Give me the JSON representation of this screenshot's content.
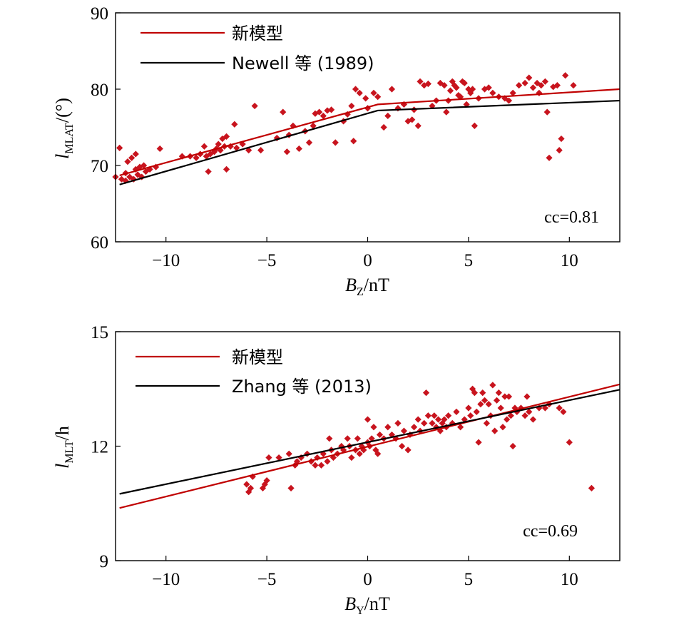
{
  "chart_data": [
    {
      "type": "scatter",
      "xlabel": "B",
      "xlabel_sub": "Z",
      "xlabel_unit": "/nT",
      "ylabel": "l",
      "ylabel_sub": "MLAT",
      "ylabel_unit": "/(°)",
      "xlim": [
        -12.5,
        12.5
      ],
      "ylim": [
        60,
        90
      ],
      "xticks": [
        -10,
        -5,
        0,
        5,
        10
      ],
      "xtick_labels": [
        "−10",
        "−5",
        "0",
        "5",
        "10"
      ],
      "yticks": [
        60,
        70,
        80,
        90
      ],
      "ytick_labels": [
        "60",
        "70",
        "80",
        "90"
      ],
      "annotation": "cc=0.81",
      "legend_position": "top-left",
      "series": [
        {
          "name": "新模型",
          "kind": "line",
          "color": "#c00000",
          "x": [
            -12.3,
            0.5,
            12.5
          ],
          "y": [
            68.7,
            78.0,
            80.0
          ]
        },
        {
          "name": "Newell 等 (1989)",
          "kind": "line",
          "color": "#000000",
          "x": [
            -12.3,
            0.5,
            12.5
          ],
          "y": [
            67.5,
            77.2,
            78.5
          ]
        },
        {
          "name": "",
          "kind": "scatter",
          "color": "#c8141e",
          "points": [
            [
              -12.5,
              68.5
            ],
            [
              -12.3,
              72.3
            ],
            [
              -12.2,
              68.2
            ],
            [
              -12.0,
              68.0
            ],
            [
              -12.0,
              69.0
            ],
            [
              -11.9,
              70.5
            ],
            [
              -11.8,
              68.5
            ],
            [
              -11.7,
              71.0
            ],
            [
              -11.6,
              68.2
            ],
            [
              -11.5,
              71.5
            ],
            [
              -11.5,
              69.5
            ],
            [
              -11.4,
              68.8
            ],
            [
              -11.3,
              69.8
            ],
            [
              -11.2,
              68.5
            ],
            [
              -11.1,
              70.0
            ],
            [
              -11.0,
              69.2
            ],
            [
              -10.8,
              69.5
            ],
            [
              -10.5,
              69.8
            ],
            [
              -10.3,
              72.2
            ],
            [
              -9.2,
              71.2
            ],
            [
              -8.8,
              71.2
            ],
            [
              -8.5,
              71.0
            ],
            [
              -8.3,
              71.5
            ],
            [
              -8.1,
              72.5
            ],
            [
              -8.0,
              71.2
            ],
            [
              -7.9,
              69.2
            ],
            [
              -7.8,
              71.5
            ],
            [
              -7.6,
              71.8
            ],
            [
              -7.5,
              72.2
            ],
            [
              -7.4,
              72.8
            ],
            [
              -7.3,
              72.0
            ],
            [
              -7.2,
              73.5
            ],
            [
              -7.1,
              72.5
            ],
            [
              -7.0,
              73.8
            ],
            [
              -7.0,
              69.5
            ],
            [
              -6.8,
              72.5
            ],
            [
              -6.6,
              75.4
            ],
            [
              -6.5,
              72.3
            ],
            [
              -6.2,
              72.8
            ],
            [
              -5.9,
              72.0
            ],
            [
              -5.6,
              77.8
            ],
            [
              -5.3,
              72.0
            ],
            [
              -4.5,
              73.6
            ],
            [
              -4.2,
              77.0
            ],
            [
              -4.0,
              71.8
            ],
            [
              -3.9,
              74.0
            ],
            [
              -3.7,
              75.2
            ],
            [
              -3.4,
              72.2
            ],
            [
              -3.1,
              74.5
            ],
            [
              -2.9,
              73.0
            ],
            [
              -2.7,
              75.2
            ],
            [
              -2.6,
              76.8
            ],
            [
              -2.4,
              77.0
            ],
            [
              -2.2,
              76.5
            ],
            [
              -2.0,
              77.2
            ],
            [
              -1.8,
              77.3
            ],
            [
              -1.6,
              73.0
            ],
            [
              -1.2,
              75.8
            ],
            [
              -1.0,
              76.7
            ],
            [
              -0.8,
              77.8
            ],
            [
              -0.7,
              73.2
            ],
            [
              -0.6,
              80.0
            ],
            [
              -0.4,
              79.5
            ],
            [
              -0.1,
              78.8
            ],
            [
              0.0,
              77.5
            ],
            [
              0.3,
              79.5
            ],
            [
              0.5,
              79.0
            ],
            [
              0.8,
              75.0
            ],
            [
              1.0,
              76.5
            ],
            [
              1.2,
              80.0
            ],
            [
              1.5,
              77.5
            ],
            [
              1.8,
              78.0
            ],
            [
              2.0,
              75.8
            ],
            [
              2.2,
              76.0
            ],
            [
              2.3,
              77.3
            ],
            [
              2.5,
              75.2
            ],
            [
              2.6,
              81.0
            ],
            [
              2.8,
              80.5
            ],
            [
              3.0,
              80.7
            ],
            [
              3.2,
              77.8
            ],
            [
              3.4,
              78.5
            ],
            [
              3.6,
              80.8
            ],
            [
              3.8,
              80.5
            ],
            [
              3.9,
              77.0
            ],
            [
              4.0,
              78.5
            ],
            [
              4.1,
              79.8
            ],
            [
              4.2,
              81.0
            ],
            [
              4.3,
              80.5
            ],
            [
              4.4,
              80.2
            ],
            [
              4.5,
              79.2
            ],
            [
              4.6,
              79.0
            ],
            [
              4.7,
              81.0
            ],
            [
              4.8,
              80.8
            ],
            [
              4.9,
              78.0
            ],
            [
              5.0,
              80.0
            ],
            [
              5.1,
              79.5
            ],
            [
              5.2,
              80.0
            ],
            [
              5.3,
              75.2
            ],
            [
              5.5,
              78.8
            ],
            [
              5.8,
              80.0
            ],
            [
              6.0,
              80.2
            ],
            [
              6.2,
              79.5
            ],
            [
              6.5,
              79.0
            ],
            [
              6.8,
              78.8
            ],
            [
              7.0,
              78.5
            ],
            [
              7.2,
              79.5
            ],
            [
              7.5,
              80.5
            ],
            [
              7.8,
              80.8
            ],
            [
              8.0,
              81.5
            ],
            [
              8.2,
              80.2
            ],
            [
              8.4,
              80.8
            ],
            [
              8.5,
              79.5
            ],
            [
              8.6,
              80.5
            ],
            [
              8.8,
              81.0
            ],
            [
              8.9,
              77.0
            ],
            [
              9.0,
              71.0
            ],
            [
              9.2,
              80.3
            ],
            [
              9.4,
              80.5
            ],
            [
              9.5,
              72.0
            ],
            [
              9.6,
              73.5
            ],
            [
              9.8,
              81.8
            ],
            [
              10.2,
              80.5
            ]
          ]
        }
      ]
    },
    {
      "type": "scatter",
      "xlabel": "B",
      "xlabel_sub": "Y",
      "xlabel_unit": "/nT",
      "ylabel": "l",
      "ylabel_sub": "MLT",
      "ylabel_unit": "/h",
      "xlim": [
        -12.5,
        12.5
      ],
      "ylim": [
        9,
        15
      ],
      "xticks": [
        -10,
        -5,
        0,
        5,
        10
      ],
      "xtick_labels": [
        "−10",
        "−5",
        "0",
        "5",
        "10"
      ],
      "yticks": [
        9,
        12,
        15
      ],
      "ytick_labels": [
        "9",
        "12",
        "15"
      ],
      "annotation": "cc=0.69",
      "legend_position": "top-left",
      "series": [
        {
          "name": "新模型",
          "kind": "line",
          "color": "#c00000",
          "x": [
            -12.3,
            12.5
          ],
          "y": [
            10.38,
            13.62
          ]
        },
        {
          "name": "Zhang 等 (2013)",
          "kind": "line",
          "color": "#000000",
          "x": [
            -12.3,
            12.5
          ],
          "y": [
            10.75,
            13.48
          ]
        },
        {
          "name": "",
          "kind": "scatter",
          "color": "#c8141e",
          "points": [
            [
              -6.0,
              11.0
            ],
            [
              -5.9,
              10.8
            ],
            [
              -5.8,
              10.9
            ],
            [
              -5.7,
              11.2
            ],
            [
              -5.2,
              10.9
            ],
            [
              -5.1,
              11.0
            ],
            [
              -5.0,
              11.1
            ],
            [
              -4.9,
              11.7
            ],
            [
              -4.4,
              11.7
            ],
            [
              -3.9,
              11.8
            ],
            [
              -3.8,
              10.9
            ],
            [
              -3.6,
              11.5
            ],
            [
              -3.5,
              11.6
            ],
            [
              -3.3,
              11.7
            ],
            [
              -3.0,
              11.8
            ],
            [
              -2.8,
              11.6
            ],
            [
              -2.6,
              11.5
            ],
            [
              -2.5,
              11.7
            ],
            [
              -2.3,
              11.5
            ],
            [
              -2.2,
              11.8
            ],
            [
              -2.0,
              11.6
            ],
            [
              -1.9,
              12.2
            ],
            [
              -1.8,
              11.9
            ],
            [
              -1.7,
              11.7
            ],
            [
              -1.5,
              11.8
            ],
            [
              -1.3,
              12.0
            ],
            [
              -1.2,
              11.9
            ],
            [
              -1.0,
              12.2
            ],
            [
              -0.9,
              12.0
            ],
            [
              -0.8,
              11.7
            ],
            [
              -0.6,
              11.9
            ],
            [
              -0.5,
              12.2
            ],
            [
              -0.4,
              11.8
            ],
            [
              -0.3,
              12.0
            ],
            [
              -0.2,
              11.9
            ],
            [
              0.0,
              12.1
            ],
            [
              0.0,
              12.7
            ],
            [
              0.1,
              12.0
            ],
            [
              0.2,
              12.2
            ],
            [
              0.3,
              12.5
            ],
            [
              0.4,
              11.9
            ],
            [
              0.5,
              11.8
            ],
            [
              0.6,
              12.3
            ],
            [
              0.8,
              12.2
            ],
            [
              1.0,
              12.5
            ],
            [
              1.2,
              12.3
            ],
            [
              1.4,
              12.2
            ],
            [
              1.5,
              12.6
            ],
            [
              1.7,
              12.0
            ],
            [
              1.8,
              12.4
            ],
            [
              2.0,
              11.9
            ],
            [
              2.1,
              12.3
            ],
            [
              2.3,
              12.5
            ],
            [
              2.5,
              12.7
            ],
            [
              2.6,
              12.4
            ],
            [
              2.8,
              12.6
            ],
            [
              2.9,
              13.4
            ],
            [
              3.0,
              12.8
            ],
            [
              3.2,
              12.6
            ],
            [
              3.3,
              12.8
            ],
            [
              3.4,
              12.5
            ],
            [
              3.5,
              12.7
            ],
            [
              3.6,
              12.4
            ],
            [
              3.7,
              12.6
            ],
            [
              3.8,
              12.7
            ],
            [
              3.9,
              12.5
            ],
            [
              4.0,
              12.8
            ],
            [
              4.2,
              12.6
            ],
            [
              4.4,
              12.9
            ],
            [
              4.6,
              12.5
            ],
            [
              4.8,
              12.7
            ],
            [
              5.0,
              13.0
            ],
            [
              5.1,
              12.8
            ],
            [
              5.2,
              13.5
            ],
            [
              5.3,
              13.4
            ],
            [
              5.4,
              12.9
            ],
            [
              5.5,
              12.1
            ],
            [
              5.6,
              13.1
            ],
            [
              5.7,
              13.4
            ],
            [
              5.8,
              13.2
            ],
            [
              5.9,
              12.6
            ],
            [
              6.0,
              13.1
            ],
            [
              6.1,
              12.8
            ],
            [
              6.2,
              13.6
            ],
            [
              6.3,
              12.4
            ],
            [
              6.4,
              13.2
            ],
            [
              6.5,
              13.4
            ],
            [
              6.6,
              13.0
            ],
            [
              6.7,
              12.5
            ],
            [
              6.8,
              13.3
            ],
            [
              6.9,
              12.7
            ],
            [
              7.0,
              13.3
            ],
            [
              7.1,
              12.8
            ],
            [
              7.2,
              12.0
            ],
            [
              7.3,
              13.0
            ],
            [
              7.4,
              12.9
            ],
            [
              7.6,
              13.0
            ],
            [
              7.8,
              12.8
            ],
            [
              7.9,
              13.3
            ],
            [
              8.0,
              12.9
            ],
            [
              8.2,
              12.7
            ],
            [
              8.5,
              13.0
            ],
            [
              8.8,
              13.0
            ],
            [
              9.0,
              13.1
            ],
            [
              9.5,
              13.0
            ],
            [
              9.7,
              12.9
            ],
            [
              10.0,
              12.1
            ],
            [
              11.1,
              10.9
            ]
          ]
        }
      ]
    }
  ]
}
